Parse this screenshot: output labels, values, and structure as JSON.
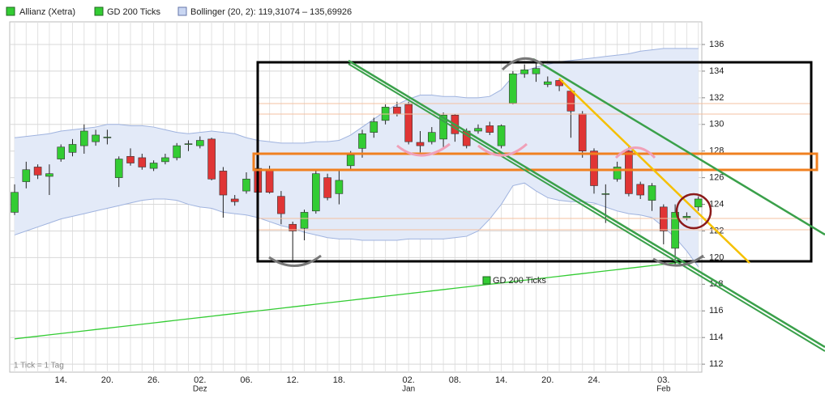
{
  "chart_data": {
    "type": "candlestick",
    "categories": [
      null,
      null,
      null,
      null,
      "14.",
      null,
      null,
      null,
      "20.",
      null,
      null,
      null,
      "26.",
      null,
      null,
      null,
      "02.",
      null,
      null,
      null,
      "06.",
      null,
      null,
      null,
      "12.",
      null,
      null,
      null,
      "18.",
      null,
      null,
      null,
      null,
      null,
      "02.",
      null,
      null,
      null,
      "08.",
      null,
      null,
      null,
      "14.",
      null,
      null,
      null,
      "20.",
      null,
      null,
      null,
      "24.",
      null,
      null,
      null,
      null,
      null,
      "03.",
      null,
      null,
      null
    ],
    "months": [
      null,
      null,
      null,
      null,
      null,
      null,
      null,
      null,
      null,
      null,
      null,
      null,
      null,
      null,
      null,
      null,
      "Dez",
      null,
      null,
      null,
      null,
      null,
      null,
      null,
      null,
      null,
      null,
      null,
      null,
      null,
      null,
      null,
      null,
      null,
      "Jan",
      null,
      null,
      null,
      null,
      null,
      null,
      null,
      null,
      null,
      null,
      null,
      null,
      null,
      null,
      null,
      null,
      null,
      null,
      null,
      null,
      null,
      "Feb",
      null,
      null,
      null
    ],
    "series": [
      {
        "name": "Allianz (Xetra)",
        "color": "#33cc33",
        "down_color": "#e03535",
        "open": [
          123.4,
          125.7,
          126.8,
          126.1,
          127.4,
          127.9,
          128.4,
          128.7,
          129.0,
          126.0,
          127.6,
          127.5,
          126.7,
          127.2,
          127.5,
          128.5,
          128.4,
          128.9,
          126.5,
          124.4,
          125.0,
          126.7,
          126.6,
          124.6,
          122.5,
          122.2,
          123.5,
          126.0,
          124.8,
          126.9,
          128.2,
          129.4,
          130.3,
          131.3,
          131.5,
          128.65,
          128.7,
          128.9,
          130.7,
          129.5,
          129.5,
          129.9,
          128.4,
          131.6,
          133.8,
          133.8,
          133.0,
          133.3,
          132.5,
          130.8,
          128.0,
          124.75,
          125.9,
          128.0,
          125.5,
          124.3,
          123.8,
          120.7,
          123.0,
          123.8
        ],
        "high": [
          125.5,
          127.2,
          127.0,
          127.0,
          128.5,
          128.9,
          130.0,
          129.6,
          129.6,
          127.6,
          128.2,
          127.8,
          127.3,
          127.8,
          128.6,
          128.8,
          129.1,
          129.0,
          126.8,
          124.7,
          126.4,
          127.0,
          126.9,
          125.0,
          122.7,
          123.6,
          126.5,
          126.3,
          126.5,
          128.0,
          129.6,
          130.5,
          131.5,
          131.7,
          131.7,
          129.5,
          129.8,
          130.9,
          130.8,
          129.7,
          130.0,
          130.2,
          130.0,
          134.0,
          134.5,
          134.6,
          133.6,
          133.4,
          132.7,
          131.0,
          128.2,
          125.5,
          127.2,
          128.3,
          125.7,
          125.6,
          124.0,
          124.0,
          123.4,
          124.6
        ],
        "low": [
          123.2,
          125.2,
          125.9,
          124.7,
          127.2,
          127.6,
          127.8,
          128.4,
          128.5,
          125.3,
          126.9,
          126.6,
          126.5,
          127.0,
          127.3,
          128.0,
          128.2,
          125.8,
          123.0,
          123.9,
          124.8,
          124.8,
          124.8,
          122.5,
          119.7,
          121.3,
          123.3,
          124.3,
          124.0,
          126.6,
          127.5,
          129.0,
          130.0,
          130.6,
          128.5,
          127.9,
          128.5,
          128.3,
          128.7,
          128.2,
          129.3,
          129.2,
          128.2,
          131.5,
          133.5,
          133.2,
          132.8,
          132.5,
          129.0,
          127.5,
          124.8,
          122.6,
          125.7,
          124.6,
          124.4,
          123.5,
          121.0,
          119.4,
          122.8,
          123.5
        ],
        "close": [
          124.9,
          126.6,
          126.2,
          126.3,
          128.3,
          128.5,
          129.5,
          129.2,
          129.05,
          127.4,
          127.1,
          126.8,
          127.1,
          127.5,
          128.4,
          128.55,
          128.8,
          125.9,
          124.7,
          124.2,
          125.9,
          124.9,
          124.9,
          123.3,
          122.0,
          123.4,
          126.3,
          124.5,
          125.8,
          127.7,
          129.3,
          130.2,
          131.3,
          130.8,
          128.7,
          128.4,
          129.4,
          130.7,
          129.3,
          128.4,
          129.7,
          129.4,
          129.9,
          133.8,
          134.1,
          134.2,
          133.2,
          132.9,
          131.0,
          128.0,
          125.4,
          124.8,
          126.8,
          124.8,
          124.7,
          125.4,
          122.0,
          123.4,
          123.1,
          124.4
        ]
      },
      {
        "name": "GD 200 Ticks",
        "color": "#33cc33",
        "values": [
          113.9,
          114.0,
          114.1,
          114.2,
          114.3,
          114.4,
          114.5,
          114.6,
          114.7,
          114.8,
          114.9,
          115.0,
          115.1,
          115.2,
          115.3,
          115.4,
          115.5,
          115.6,
          115.7,
          115.8,
          115.9,
          116.0,
          116.1,
          116.2,
          116.3,
          116.4,
          116.5,
          116.6,
          116.7,
          116.8,
          116.9,
          117.0,
          117.1,
          117.2,
          117.3,
          117.4,
          117.5,
          117.6,
          117.7,
          117.8,
          117.9,
          118.0,
          118.1,
          118.2,
          118.3,
          118.4,
          118.5,
          118.6,
          118.7,
          118.8,
          118.9,
          119.0,
          119.1,
          119.2,
          119.3,
          119.4,
          119.5,
          119.6,
          119.7,
          119.8
        ]
      },
      {
        "name": "Bollinger (20, 2): 119,31074 – 135,69926",
        "color": "#9fb3df",
        "fill": "#e3eaf8",
        "upper": [
          129.0,
          129.1,
          129.2,
          129.3,
          129.5,
          129.6,
          129.7,
          129.8,
          130.0,
          130.0,
          129.9,
          129.9,
          129.8,
          129.6,
          129.4,
          129.3,
          129.4,
          129.5,
          129.4,
          129.3,
          129.0,
          128.8,
          128.7,
          128.6,
          128.6,
          128.6,
          128.7,
          128.7,
          128.8,
          129.2,
          129.8,
          130.4,
          131.0,
          131.5,
          131.9,
          132.2,
          132.2,
          132.1,
          132.1,
          132.0,
          132.0,
          132.1,
          132.6,
          133.6,
          134.0,
          134.3,
          134.5,
          134.7,
          134.8,
          134.9,
          135.0,
          135.1,
          135.2,
          135.3,
          135.5,
          135.6,
          135.7,
          135.7,
          135.7,
          135.69926
        ],
        "lower": [
          121.7,
          122.0,
          122.3,
          122.6,
          122.9,
          123.1,
          123.3,
          123.5,
          123.7,
          123.9,
          124.1,
          124.3,
          124.4,
          124.4,
          124.3,
          124.0,
          123.8,
          123.7,
          123.4,
          123.3,
          123.2,
          123.0,
          122.7,
          122.4,
          122.2,
          121.9,
          121.7,
          121.5,
          121.4,
          121.4,
          121.3,
          121.3,
          121.3,
          121.3,
          121.4,
          121.4,
          121.4,
          121.4,
          121.5,
          121.6,
          122.0,
          122.9,
          124.0,
          125.4,
          125.6,
          125.0,
          124.5,
          124.3,
          124.2,
          124.2,
          124.1,
          123.8,
          123.5,
          123.3,
          123.2,
          123.0,
          122.3,
          121.5,
          120.5,
          119.31074
        ]
      }
    ],
    "ylim": [
      111.4,
      137.7
    ],
    "yticks": [
      112,
      114,
      116,
      118,
      120,
      122,
      124,
      126,
      128,
      130,
      132,
      134,
      136
    ],
    "grid": true,
    "note": "1 Tick = 1 Tag"
  }
}
